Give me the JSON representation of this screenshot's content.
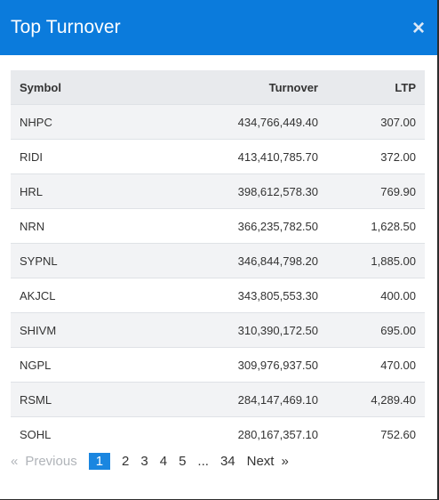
{
  "modal": {
    "title": "Top Turnover",
    "close_label": "×"
  },
  "table": {
    "headers": {
      "symbol": "Symbol",
      "turnover": "Turnover",
      "ltp": "LTP"
    },
    "rows": [
      {
        "symbol": "NHPC",
        "turnover": "434,766,449.40",
        "ltp": "307.00"
      },
      {
        "symbol": "RIDI",
        "turnover": "413,410,785.70",
        "ltp": "372.00"
      },
      {
        "symbol": "HRL",
        "turnover": "398,612,578.30",
        "ltp": "769.90"
      },
      {
        "symbol": "NRN",
        "turnover": "366,235,782.50",
        "ltp": "1,628.50"
      },
      {
        "symbol": "SYPNL",
        "turnover": "346,844,798.20",
        "ltp": "1,885.00"
      },
      {
        "symbol": "AKJCL",
        "turnover": "343,805,553.30",
        "ltp": "400.00"
      },
      {
        "symbol": "SHIVM",
        "turnover": "310,390,172.50",
        "ltp": "695.00"
      },
      {
        "symbol": "NGPL",
        "turnover": "309,976,937.50",
        "ltp": "470.00"
      },
      {
        "symbol": "RSML",
        "turnover": "284,147,469.10",
        "ltp": "4,289.40"
      },
      {
        "symbol": "SOHL",
        "turnover": "280,167,357.10",
        "ltp": "752.60"
      }
    ]
  },
  "pagination": {
    "prev_arrow": "«",
    "prev_label": "Previous",
    "pages": [
      "1",
      "2",
      "3",
      "4",
      "5"
    ],
    "ellipsis": "...",
    "last_page": "34",
    "next_label": "Next",
    "next_arrow": "»",
    "current_page": "1"
  },
  "colors": {
    "header_bg": "#0b7bdc",
    "active_page": "#1a86e0"
  }
}
